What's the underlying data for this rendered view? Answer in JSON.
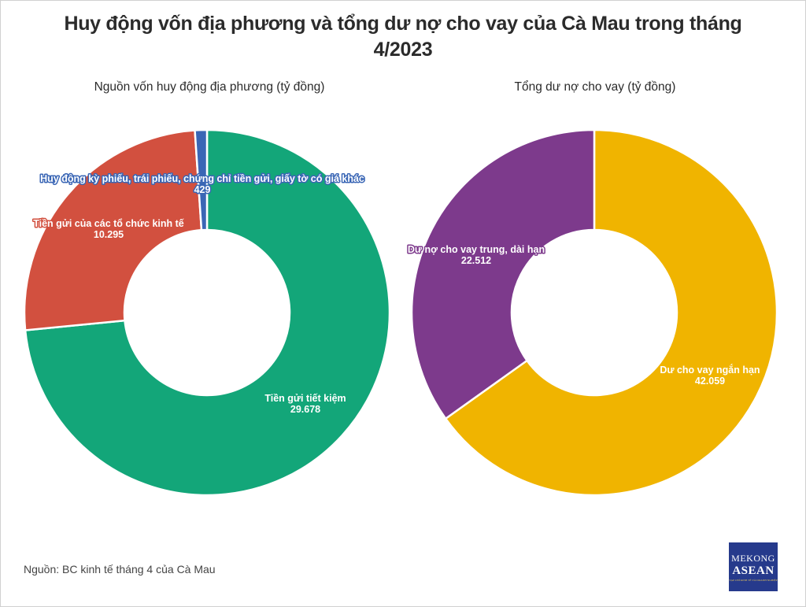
{
  "title": "Huy động vốn địa phương và tổng dư nợ cho vay của Cà Mau trong tháng 4/2023",
  "title_line1": "Huy động vốn địa phương và tổng dư nợ cho vay của Cà Mau trong tháng",
  "title_line2": "4/2023",
  "source": "Nguồn: BC kinh tế tháng 4 của Cà Mau",
  "logo": {
    "line1": "MEKONG",
    "line2": "ASEAN",
    "tagline": "TẠP CHÍ KINH TẾ VÀ DOANH NGHIỆP"
  },
  "chart_data": [
    {
      "type": "pie",
      "variant": "donut",
      "title": "Nguồn vốn huy động địa phương (tỷ đồng)",
      "categories": [
        "Tiền gửi tiết kiệm",
        "Tiền gửi của các tổ chức kinh tế",
        "Huy động kỳ phiếu, trái phiếu, chứng chỉ tiền gửi, giấy tờ có giá khác"
      ],
      "values": [
        29678,
        10295,
        429
      ],
      "value_labels": [
        "29.678",
        "10.295",
        "429"
      ],
      "colors": [
        "#13a679",
        "#d2503f",
        "#3a66b5"
      ],
      "unit": "tỷ đồng",
      "start_angle": 0,
      "direction": "clockwise"
    },
    {
      "type": "pie",
      "variant": "donut",
      "title": "Tổng dư nợ cho vay (tỷ đồng)",
      "categories": [
        "Dư cho vay ngắn hạn",
        "Dư nợ cho vay trung, dài hạn"
      ],
      "values": [
        42059,
        22512
      ],
      "value_labels": [
        "42.059",
        "22.512"
      ],
      "colors": [
        "#f0b400",
        "#7d3a8c"
      ],
      "unit": "tỷ đồng",
      "start_angle": 0,
      "direction": "clockwise"
    }
  ],
  "labels": {
    "left": {
      "green_name": "Tiền gửi tiết kiệm",
      "green_value": "29.678",
      "red_name": "Tiền gửi của các tổ chức kinh tế",
      "red_value": "10.295",
      "blue_name": "Huy động kỳ phiếu, trái phiếu, chứng chỉ tiền gửi, giấy tờ có giá khác",
      "blue_value": "429"
    },
    "right": {
      "yellow_name": "Dư cho vay ngắn hạn",
      "yellow_value": "42.059",
      "purple_name": "Dư nợ cho vay trung, dài hạn",
      "purple_value": "22.512"
    }
  }
}
